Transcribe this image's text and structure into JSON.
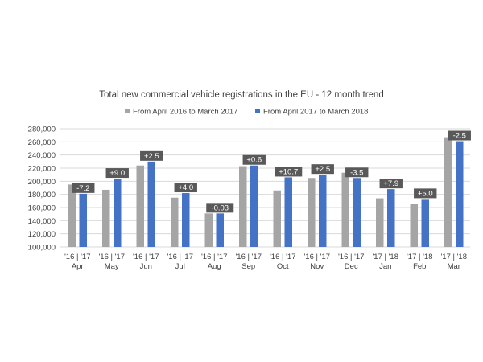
{
  "chart_data": {
    "type": "bar",
    "title": "Total new commercial vehicle registrations in the EU - 12 month trend",
    "xlabel": "",
    "ylabel": "",
    "ylim": [
      100000,
      280000
    ],
    "yticks": [
      100000,
      120000,
      140000,
      160000,
      180000,
      200000,
      220000,
      240000,
      260000,
      280000
    ],
    "ytick_labels": [
      "100,000",
      "120,000",
      "140,000",
      "160,000",
      "180,000",
      "200,000",
      "220,000",
      "240,000",
      "260,000",
      "280,000"
    ],
    "grid": true,
    "legend_position": "top",
    "categories": [
      "Apr",
      "May",
      "Jun",
      "Jul",
      "Aug",
      "Sep",
      "Oct",
      "Nov",
      "Dec",
      "Jan",
      "Feb",
      "Mar"
    ],
    "year_labels": [
      "'16 | '17",
      "'16 | '17",
      "'16 | '17",
      "'16 | '17",
      "'16 | '17",
      "'16 | '17",
      "'16 | '17",
      "'16 | '17",
      "'16 | '17",
      "'17 | '18",
      "'17 | '18",
      "'17 | '18"
    ],
    "series": [
      {
        "name": "From April 2016 to March 2017",
        "color": "#a5a5a5",
        "values": [
          195000,
          187000,
          224000,
          175000,
          151000,
          223000,
          186000,
          205000,
          213000,
          174000,
          165000,
          267000
        ]
      },
      {
        "name": "From April 2017 to March 2018",
        "color": "#4472c4",
        "values": [
          181000,
          204000,
          230000,
          182000,
          151000,
          224000,
          206000,
          210000,
          205000,
          188000,
          173000,
          261000
        ]
      }
    ],
    "annotations": [
      "-7.2",
      "+9.0",
      "+2.5",
      "+4.0",
      "-0.03",
      "+0.6",
      "+10.7",
      "+2.5",
      "-3.5",
      "+7.9",
      "+5.0",
      "-2.5"
    ],
    "annotation_color": "#595959"
  }
}
